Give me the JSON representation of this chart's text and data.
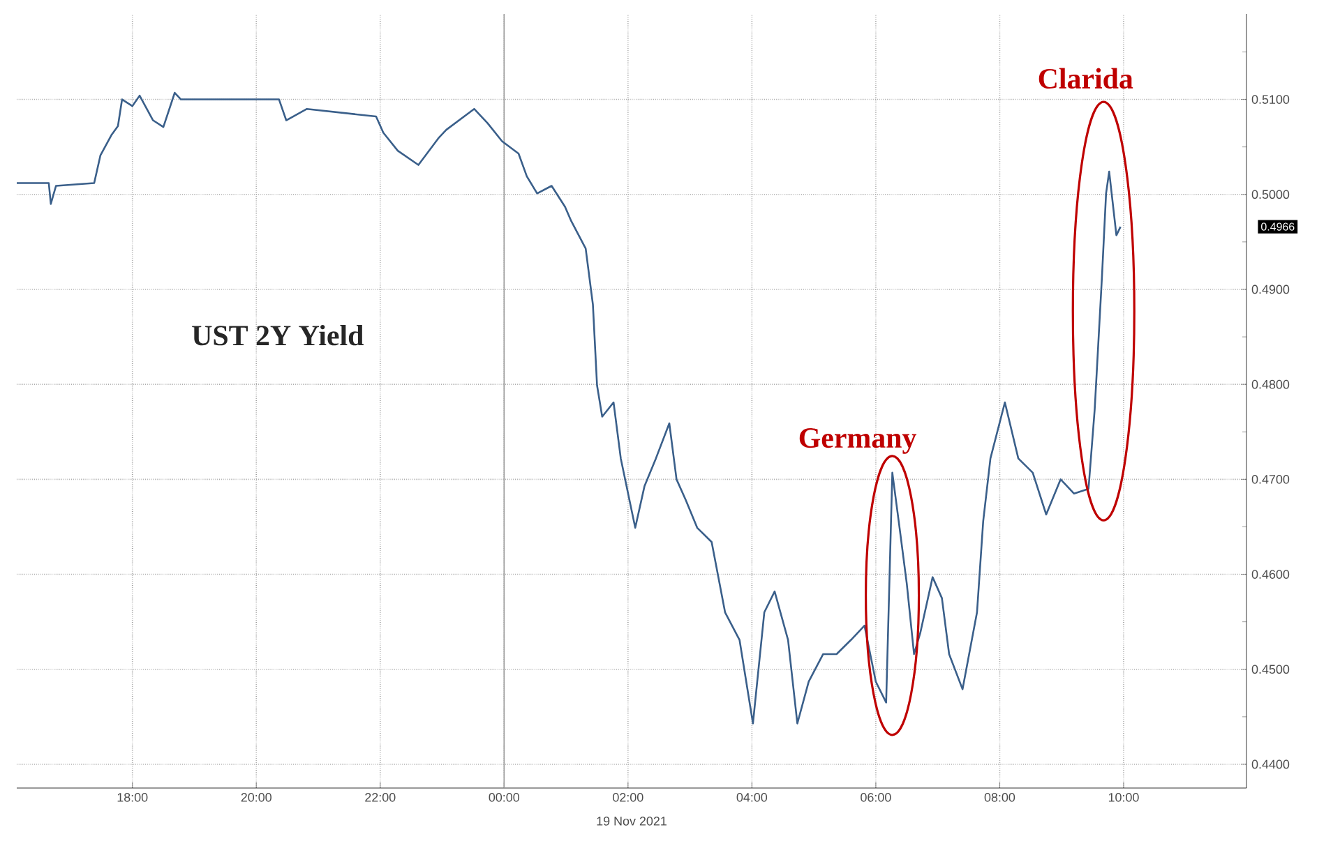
{
  "chart_data": {
    "type": "line",
    "title": "UST 2Y Yield",
    "x": [
      "2021-11-18T16:08",
      "2021-11-18T16:39",
      "2021-11-18T16:41",
      "2021-11-18T16:46",
      "2021-11-18T17:23",
      "2021-11-18T17:29",
      "2021-11-18T17:40",
      "2021-11-18T17:46",
      "2021-11-18T17:50",
      "2021-11-18T18:00",
      "2021-11-18T18:07",
      "2021-11-18T18:20",
      "2021-11-18T18:30",
      "2021-11-18T18:41",
      "2021-11-18T18:47",
      "2021-11-18T19:14",
      "2021-11-18T20:22",
      "2021-11-18T20:29",
      "2021-11-18T20:49",
      "2021-11-18T21:56",
      "2021-11-18T22:03",
      "2021-11-18T22:17",
      "2021-11-18T22:37",
      "2021-11-18T22:57",
      "2021-11-18T23:04",
      "2021-11-18T23:31",
      "2021-11-18T23:44",
      "2021-11-18T23:58",
      "2021-11-19T00:14",
      "2021-11-19T00:22",
      "2021-11-19T00:32",
      "2021-11-19T00:46",
      "2021-11-19T00:59",
      "2021-11-19T01:05",
      "2021-11-19T01:19",
      "2021-11-19T01:26",
      "2021-11-19T01:30",
      "2021-11-19T01:35",
      "2021-11-19T01:46",
      "2021-11-19T01:53",
      "2021-11-19T02:07",
      "2021-11-19T02:16",
      "2021-11-19T02:27",
      "2021-11-19T02:40",
      "2021-11-19T02:47",
      "2021-11-19T02:56",
      "2021-11-19T03:07",
      "2021-11-19T03:21",
      "2021-11-19T03:34",
      "2021-11-19T03:48",
      "2021-11-19T04:01",
      "2021-11-19T04:12",
      "2021-11-19T04:22",
      "2021-11-19T04:35",
      "2021-11-19T04:44",
      "2021-11-19T04:55",
      "2021-11-19T05:09",
      "2021-11-19T05:22",
      "2021-11-19T05:36",
      "2021-11-19T05:49",
      "2021-11-19T06:00",
      "2021-11-19T06:10",
      "2021-11-19T06:16",
      "2021-11-19T06:23",
      "2021-11-19T06:30",
      "2021-11-19T06:37",
      "2021-11-19T06:43",
      "2021-11-19T06:55",
      "2021-11-19T07:04",
      "2021-11-19T07:11",
      "2021-11-19T07:24",
      "2021-11-19T07:38",
      "2021-11-19T07:44",
      "2021-11-19T07:51",
      "2021-11-19T08:05",
      "2021-11-19T08:18",
      "2021-11-19T08:32",
      "2021-11-19T08:45",
      "2021-11-19T08:59",
      "2021-11-19T09:12",
      "2021-11-19T09:26",
      "2021-11-19T09:32",
      "2021-11-19T09:39",
      "2021-11-19T09:43",
      "2021-11-19T09:46",
      "2021-11-19T09:53",
      "2021-11-19T09:57"
    ],
    "series": [
      {
        "color": "#3a5f8a",
        "values": [
          0.5012,
          0.5012,
          0.499,
          0.5009,
          0.5012,
          0.5041,
          0.5063,
          0.5072,
          0.51,
          0.5093,
          0.5104,
          0.5078,
          0.5071,
          0.5107,
          0.51,
          0.51,
          0.51,
          0.5078,
          0.509,
          0.5082,
          0.5065,
          0.5046,
          0.5031,
          0.506,
          0.5068,
          0.509,
          0.5075,
          0.5056,
          0.5043,
          0.5019,
          0.5001,
          0.5009,
          0.4987,
          0.4972,
          0.4943,
          0.4884,
          0.4799,
          0.4766,
          0.4781,
          0.4722,
          0.4649,
          0.4693,
          0.4722,
          0.4759,
          0.47,
          0.4678,
          0.4649,
          0.4634,
          0.456,
          0.4531,
          0.4443,
          0.456,
          0.4582,
          0.4531,
          0.4443,
          0.4487,
          0.4516,
          0.4516,
          0.4531,
          0.4546,
          0.4487,
          0.4465,
          0.4707,
          0.4649,
          0.459,
          0.4516,
          0.4538,
          0.4597,
          0.4575,
          0.4516,
          0.4479,
          0.456,
          0.4656,
          0.4722,
          0.4781,
          0.4722,
          0.4707,
          0.4663,
          0.47,
          0.4685,
          0.469,
          0.4774,
          0.4913,
          0.5001,
          0.5024,
          0.4957,
          0.4966
        ]
      }
    ],
    "xlim": [
      "2021-11-18T16:08",
      "2021-11-19T11:59"
    ],
    "ylim": [
      0.4375,
      0.519
    ],
    "xticks": [
      {
        "value": "2021-11-18T18:00",
        "label": "18:00"
      },
      {
        "value": "2021-11-18T20:00",
        "label": "20:00"
      },
      {
        "value": "2021-11-18T22:00",
        "label": "22:00"
      },
      {
        "value": "2021-11-19T00:00",
        "label": "00:00"
      },
      {
        "value": "2021-11-19T02:00",
        "label": "02:00"
      },
      {
        "value": "2021-11-19T04:00",
        "label": "04:00"
      },
      {
        "value": "2021-11-19T06:00",
        "label": "06:00"
      },
      {
        "value": "2021-11-19T08:00",
        "label": "08:00"
      },
      {
        "value": "2021-11-19T10:00",
        "label": "10:00"
      }
    ],
    "yticks": [
      {
        "value": 0.44,
        "label": "0.4400"
      },
      {
        "value": 0.445,
        "label": null
      },
      {
        "value": 0.45,
        "label": "0.4500"
      },
      {
        "value": 0.455,
        "label": null
      },
      {
        "value": 0.46,
        "label": "0.4600"
      },
      {
        "value": 0.465,
        "label": null
      },
      {
        "value": 0.47,
        "label": "0.4700"
      },
      {
        "value": 0.475,
        "label": null
      },
      {
        "value": 0.48,
        "label": "0.4800"
      },
      {
        "value": 0.485,
        "label": null
      },
      {
        "value": 0.49,
        "label": "0.4900"
      },
      {
        "value": 0.495,
        "label": null
      },
      {
        "value": 0.5,
        "label": "0.5000"
      },
      {
        "value": 0.505,
        "label": null
      },
      {
        "value": 0.51,
        "label": "0.5100"
      },
      {
        "value": 0.515,
        "label": null
      }
    ],
    "grid": true,
    "line_style": "solid",
    "ref_lines": [
      {
        "axis": "x",
        "value": "2021-11-19T00:00",
        "color": "#9a9a9a"
      }
    ],
    "annotations": [
      {
        "text": "Germany",
        "x": "2021-11-19T06:16",
        "y": 0.4707
      },
      {
        "text": "Clarida",
        "x": "2021-11-19T09:46",
        "y": 0.5024
      },
      "19 Nov 2021",
      "0.4966"
    ]
  }
}
